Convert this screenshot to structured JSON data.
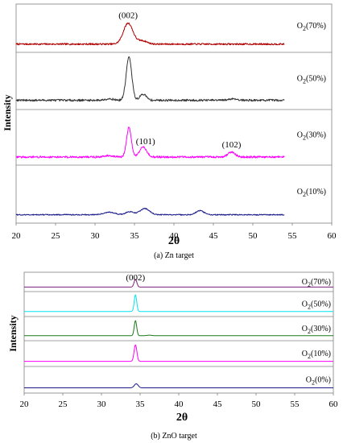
{
  "chart_data": [
    {
      "type": "line",
      "caption": "(a) Zn target",
      "xlabel": "2θ",
      "ylabel": "Intensity",
      "xlim": [
        20,
        60
      ],
      "xticks": [
        20,
        25,
        30,
        35,
        40,
        45,
        50,
        55,
        60
      ],
      "grid": false,
      "x_range_data": [
        20,
        54
      ],
      "series": [
        {
          "name": "O2(70%)",
          "label_main": "O",
          "label_sub": "2",
          "label_tail": "(70%)",
          "color": "#b00000",
          "baseline": 0.12,
          "noise": 0.02,
          "peaks": [
            {
              "x": 34.2,
              "h": 0.5,
              "w": 0.6
            },
            {
              "x": 36.0,
              "h": 0.08,
              "w": 0.6
            }
          ]
        },
        {
          "name": "O2(50%)",
          "label_main": "O",
          "label_sub": "2",
          "label_tail": "(50%)",
          "color": "#333333",
          "baseline": 0.12,
          "noise": 0.02,
          "peaks": [
            {
              "x": 34.3,
              "h": 0.85,
              "w": 0.35
            },
            {
              "x": 36.1,
              "h": 0.12,
              "w": 0.4
            },
            {
              "x": 31.8,
              "h": 0.03,
              "w": 0.5
            },
            {
              "x": 47.5,
              "h": 0.03,
              "w": 0.5
            }
          ]
        },
        {
          "name": "O2(30%)",
          "label_main": "O",
          "label_sub": "2",
          "label_tail": "(30%)",
          "color": "#ff00ff",
          "baseline": 0.1,
          "noise": 0.02,
          "peaks": [
            {
              "x": 34.3,
              "h": 0.6,
              "w": 0.3
            },
            {
              "x": 36.1,
              "h": 0.2,
              "w": 0.45
            },
            {
              "x": 31.8,
              "h": 0.03,
              "w": 0.5
            },
            {
              "x": 47.3,
              "h": 0.1,
              "w": 0.45
            }
          ]
        },
        {
          "name": "O2(10%)",
          "label_main": "O",
          "label_sub": "2",
          "label_tail": "(10%)",
          "color": "#1a1a8c",
          "baseline": 0.1,
          "noise": 0.01,
          "peaks": [
            {
              "x": 31.8,
              "h": 0.05,
              "w": 0.7
            },
            {
              "x": 34.4,
              "h": 0.06,
              "w": 0.5
            },
            {
              "x": 36.3,
              "h": 0.12,
              "w": 0.6
            },
            {
              "x": 43.3,
              "h": 0.08,
              "w": 0.5
            }
          ]
        }
      ],
      "annotations": [
        {
          "text": "(002)",
          "x": 34.2,
          "band": 0
        },
        {
          "text": "(101)",
          "x": 36.4,
          "band": 2
        },
        {
          "text": "(102)",
          "x": 47.3,
          "band": 2
        }
      ]
    },
    {
      "type": "line",
      "caption": "(b) ZnO target",
      "xlabel": "2θ",
      "ylabel": "Intensity",
      "xlim": [
        20,
        60
      ],
      "xticks": [
        20,
        25,
        30,
        35,
        40,
        45,
        50,
        55,
        60
      ],
      "grid": false,
      "x_range_data": [
        20,
        60
      ],
      "series": [
        {
          "name": "O2(70%)",
          "label_main": "O",
          "label_sub": "2",
          "label_tail": "(70%)",
          "color": "#7a1f7a",
          "baseline": 0.1,
          "noise": 0.0,
          "peaks": [
            {
              "x": 34.4,
              "h": 0.6,
              "w": 0.18
            }
          ]
        },
        {
          "name": "O2(50%)",
          "label_main": "O",
          "label_sub": "2",
          "label_tail": "(50%)",
          "color": "#00e5ee",
          "baseline": 0.1,
          "noise": 0.0,
          "peaks": [
            {
              "x": 34.4,
              "h": 0.9,
              "w": 0.16
            }
          ]
        },
        {
          "name": "O2(30%)",
          "label_main": "O",
          "label_sub": "2",
          "label_tail": "(30%)",
          "color": "#1a7a1a",
          "baseline": 0.1,
          "noise": 0.0,
          "peaks": [
            {
              "x": 34.4,
              "h": 0.85,
              "w": 0.16
            },
            {
              "x": 36.2,
              "h": 0.03,
              "w": 0.3
            }
          ]
        },
        {
          "name": "O2(10%)",
          "label_main": "O",
          "label_sub": "2",
          "label_tail": "(10%)",
          "color": "#ff00ff",
          "baseline": 0.1,
          "noise": 0.0,
          "peaks": [
            {
              "x": 34.4,
              "h": 0.85,
              "w": 0.18
            }
          ]
        },
        {
          "name": "O2(0%)",
          "label_main": "O",
          "label_sub": "2",
          "label_tail": "(0%)",
          "color": "#1a1a8c",
          "baseline": 0.1,
          "noise": 0.0,
          "peaks": [
            {
              "x": 34.5,
              "h": 0.2,
              "w": 0.25
            }
          ]
        }
      ],
      "annotations": [
        {
          "text": "(002)",
          "x": 34.4,
          "band": 0
        }
      ]
    }
  ]
}
